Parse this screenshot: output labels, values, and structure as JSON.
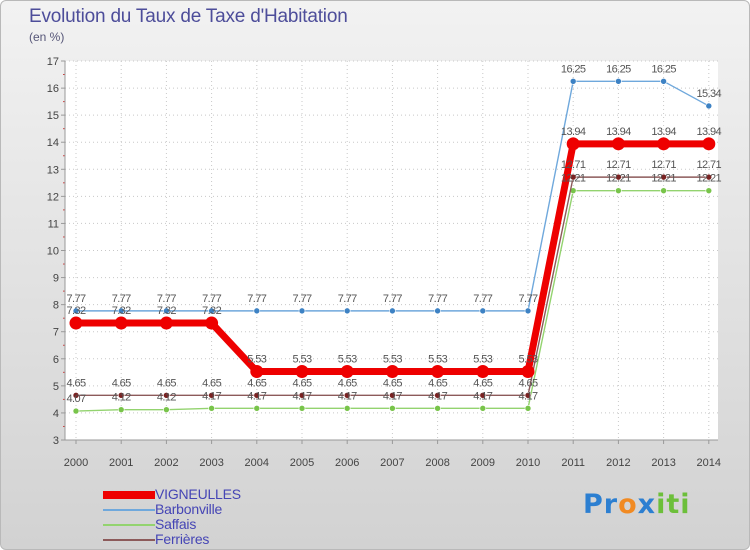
{
  "title": "Evolution du Taux de Taxe d'Habitation",
  "ylabel": "(en %)",
  "logo": {
    "parts": [
      "Pr",
      "o",
      "x",
      "iti"
    ],
    "colors": [
      "#2c7fd1",
      "#f18a22",
      "#2c7fd1",
      "#6cbf3a"
    ]
  },
  "chart_data": {
    "type": "line",
    "title": "Evolution du Taux de Taxe d'Habitation",
    "ylabel": "(en %)",
    "xlabel": "",
    "ylim": [
      3,
      17
    ],
    "yticks": [
      "3",
      "4",
      "5",
      "6",
      "7",
      "8",
      "9",
      "10",
      "11",
      "12",
      "13",
      "14",
      "15",
      "16",
      "17"
    ],
    "categories": [
      "2000",
      "2001",
      "2002",
      "2003",
      "2004",
      "2005",
      "2006",
      "2007",
      "2008",
      "2009",
      "2010",
      "2011",
      "2012",
      "2013",
      "2014"
    ],
    "series": [
      {
        "name": "Barbonville",
        "color": "#6fa8dc",
        "values": [
          7.77,
          7.77,
          7.77,
          7.77,
          7.77,
          7.77,
          7.77,
          7.77,
          7.77,
          7.77,
          7.77,
          16.25,
          16.25,
          16.25,
          15.34
        ],
        "labels": [
          "7.77",
          "7.77",
          "7.77",
          "7.77",
          "7.77",
          "7.77",
          "7.77",
          "7.77",
          "7.77",
          "7.77",
          "7.77",
          "16.25",
          "16.25",
          "16.25",
          "15.34"
        ]
      },
      {
        "name": "Saffais",
        "color": "#93d36f",
        "values": [
          4.07,
          4.12,
          4.12,
          4.17,
          4.17,
          4.17,
          4.17,
          4.17,
          4.17,
          4.17,
          4.17,
          12.21,
          12.21,
          12.21,
          12.21
        ],
        "labels": [
          "4.07",
          "4.12",
          "4.12",
          "4.17",
          "4.17",
          "4.17",
          "4.17",
          "4.17",
          "4.17",
          "4.17",
          "4.17",
          "12.21",
          "12.21",
          "12.21",
          "12.21"
        ]
      },
      {
        "name": "Ferrières",
        "color": "#8c5a5a",
        "values": [
          4.65,
          4.65,
          4.65,
          4.65,
          4.65,
          4.65,
          4.65,
          4.65,
          4.65,
          4.65,
          4.65,
          12.71,
          12.71,
          12.71,
          12.71
        ],
        "labels": [
          "4.65",
          "4.65",
          "4.65",
          "4.65",
          "4.65",
          "4.65",
          "4.65",
          "4.65",
          "4.65",
          "4.65",
          "4.65",
          "12.71",
          "12.71",
          "12.71",
          "12.71"
        ]
      },
      {
        "name": "VIGNEULLES",
        "color": "#ee0000",
        "values": [
          7.32,
          7.32,
          7.32,
          7.32,
          5.53,
          5.53,
          5.53,
          5.53,
          5.53,
          5.53,
          5.53,
          13.94,
          13.94,
          13.94,
          13.94
        ],
        "labels": [
          "7.32",
          "7.32",
          "7.32",
          "7.32",
          "5.53",
          "5.53",
          "5.53",
          "5.53",
          "5.53",
          "5.53",
          "5.53",
          "13.94",
          "13.94",
          "13.94",
          "13.94"
        ]
      }
    ],
    "legend": [
      "VIGNEULLES",
      "Barbonville",
      "Saffais",
      "Ferrières"
    ]
  }
}
